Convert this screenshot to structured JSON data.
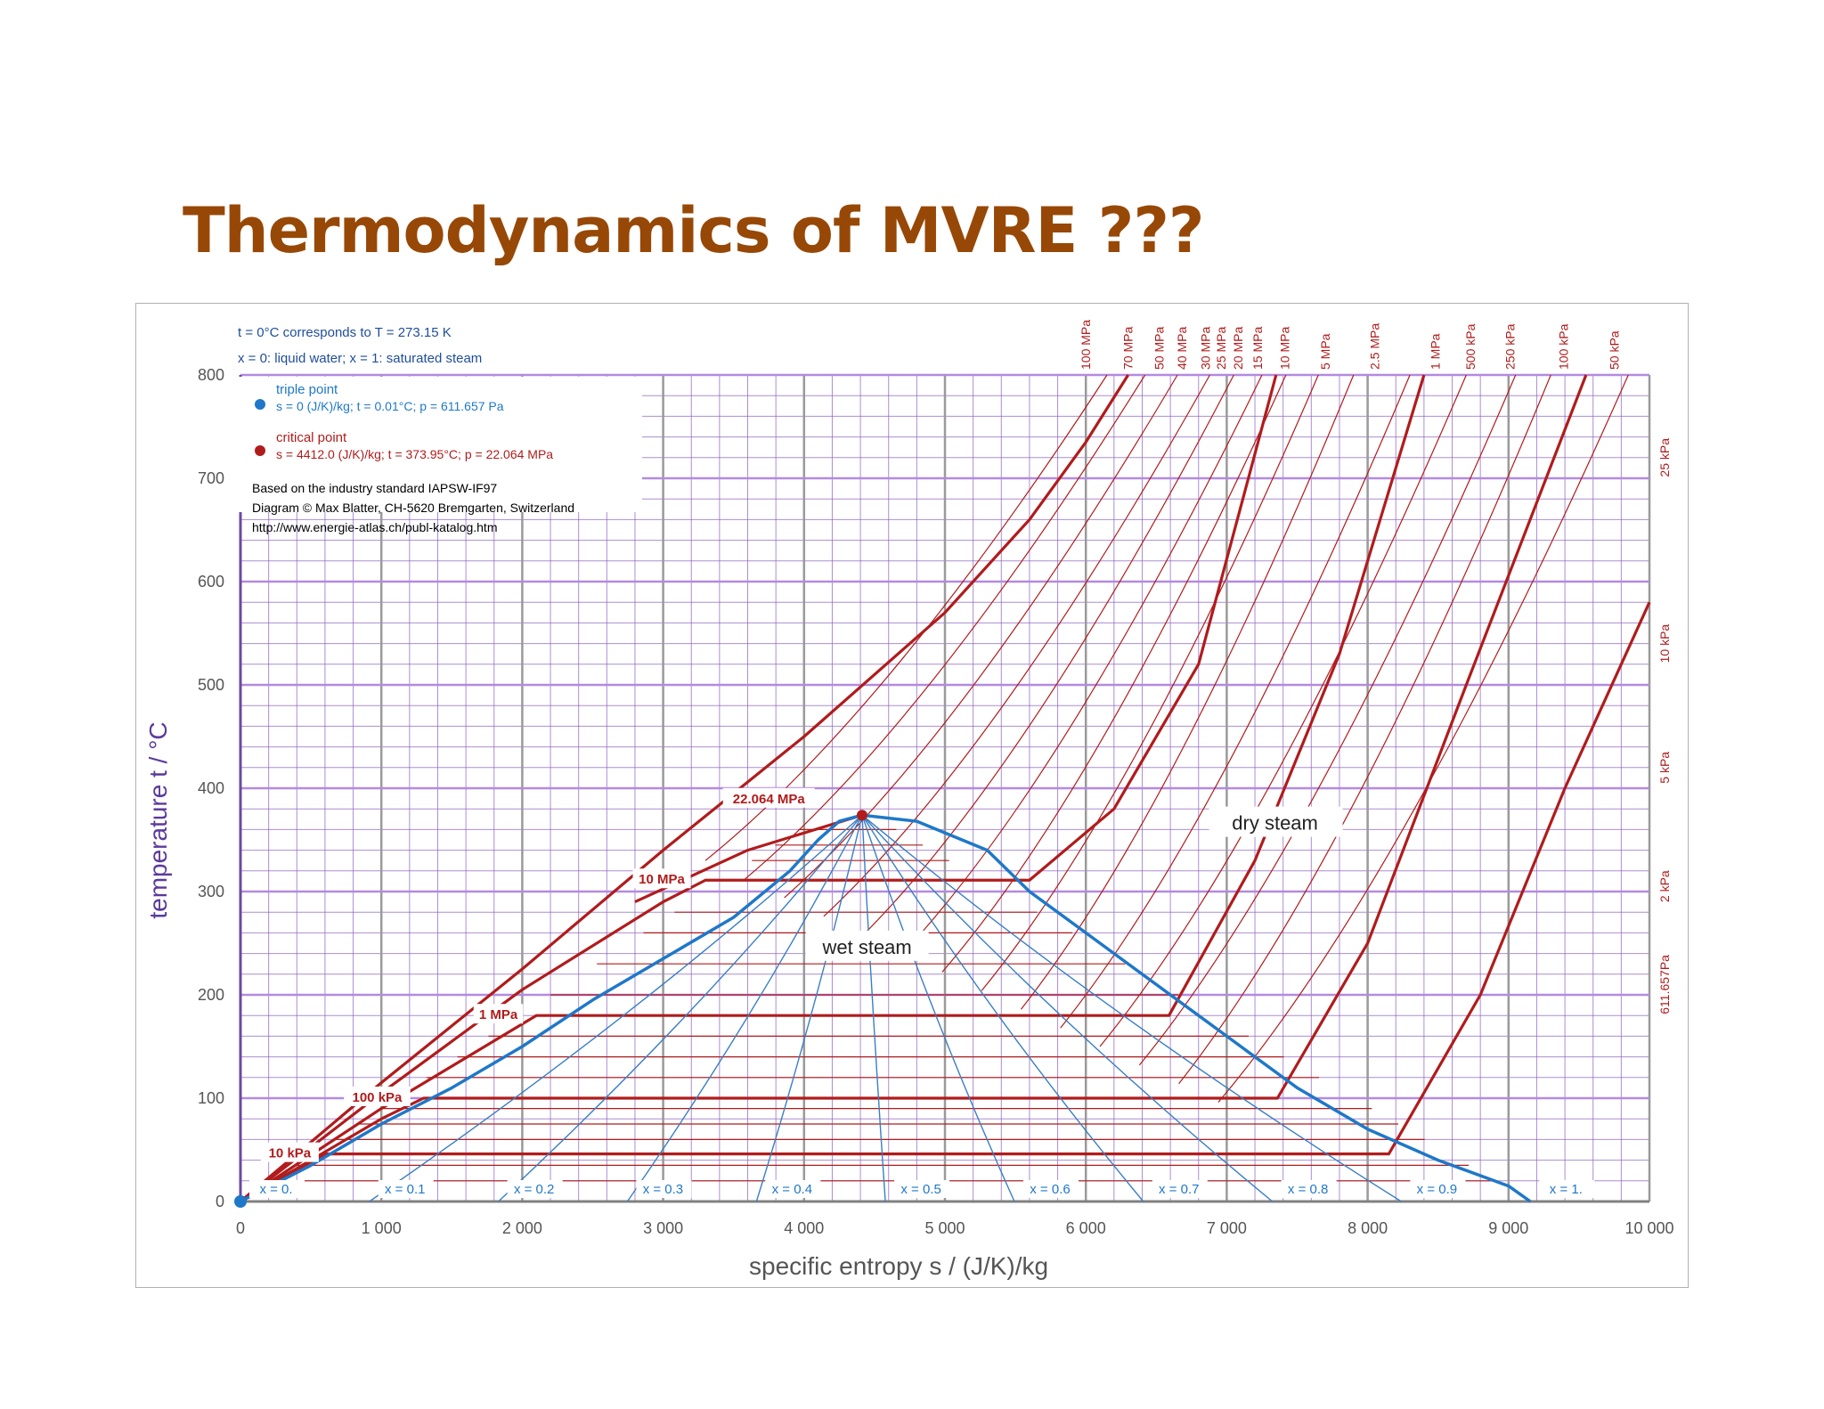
{
  "page": {
    "title": "Thermodynamics of MVRE ???"
  },
  "chart_data": {
    "type": "line",
    "xlabel": "specific entropy  s / (J/K)/kg",
    "ylabel": "temperature  t / °C",
    "xlim": [
      0,
      10000
    ],
    "ylim": [
      0,
      800
    ],
    "x_ticks": [
      0,
      1000,
      2000,
      3000,
      4000,
      5000,
      6000,
      7000,
      8000,
      9000,
      10000
    ],
    "x_tick_labels": [
      "0",
      "1 000",
      "2 000",
      "3 000",
      "4 000",
      "5 000",
      "6 000",
      "7 000",
      "8 000",
      "9 000",
      "10 000"
    ],
    "y_ticks": [
      0,
      100,
      200,
      300,
      400,
      500,
      600,
      700,
      800
    ],
    "y_tick_labels": [
      "0",
      "100",
      "200",
      "300",
      "400",
      "500",
      "600",
      "700",
      "800"
    ],
    "grid": true,
    "notes": {
      "line1": "t = 0°C corresponds to  T = 273.15 K",
      "line2": "x = 0: liquid water;  x = 1: saturated steam"
    },
    "legend": {
      "triple_label": "triple point",
      "triple_values": "s = 0 (J/K)/kg;  t = 0.01°C;  p = 611.657 Pa",
      "critical_label": "critical point",
      "critical_values": "s = 4412.0 (J/K)/kg;  t = 373.95°C;  p = 22.064 MPa",
      "source1": "Based on the industry standard IAPSW-IF97",
      "source2": "Diagram © Max Blatter, CH-5620 Bremgarten, Switzerland",
      "source3": "http://www.energie-atlas.ch/publ-katalog.htm"
    },
    "region_labels": {
      "wet": "wet steam",
      "dry": "dry steam"
    },
    "triple_point": {
      "s": 0,
      "t": 0.01
    },
    "critical_point": {
      "s": 4412,
      "t": 373.95
    },
    "saturation_dome": {
      "liquid": [
        [
          0,
          0
        ],
        [
          500,
          35
        ],
        [
          1000,
          75
        ],
        [
          1500,
          110
        ],
        [
          2000,
          150
        ],
        [
          2500,
          195
        ],
        [
          3000,
          235
        ],
        [
          3500,
          275
        ],
        [
          3900,
          320
        ],
        [
          4100,
          350
        ],
        [
          4250,
          368
        ],
        [
          4412,
          373.95
        ]
      ],
      "vapor": [
        [
          4412,
          373.95
        ],
        [
          4800,
          368
        ],
        [
          5300,
          340
        ],
        [
          5600,
          300
        ],
        [
          6000,
          260
        ],
        [
          6500,
          210
        ],
        [
          7000,
          160
        ],
        [
          7500,
          110
        ],
        [
          8000,
          70
        ],
        [
          8500,
          40
        ],
        [
          9000,
          15
        ],
        [
          9155,
          0
        ]
      ]
    },
    "quality_lines": [
      {
        "label": "x = 0.",
        "s_bottom": 0
      },
      {
        "label": "x = 0.1",
        "s_bottom": 915
      },
      {
        "label": "x = 0.2",
        "s_bottom": 1831
      },
      {
        "label": "x = 0.3",
        "s_bottom": 2746
      },
      {
        "label": "x = 0.4",
        "s_bottom": 3662
      },
      {
        "label": "x = 0.5",
        "s_bottom": 4577
      },
      {
        "label": "x = 0.6",
        "s_bottom": 5493
      },
      {
        "label": "x = 0.7",
        "s_bottom": 6408
      },
      {
        "label": "x = 0.8",
        "s_bottom": 7324
      },
      {
        "label": "x = 0.9",
        "s_bottom": 8239
      },
      {
        "label": "x = 1.",
        "s_bottom": 9155
      }
    ],
    "isobars_major": [
      {
        "label": "100 MPa",
        "points": [
          [
            0,
            0
          ],
          [
            1000,
            115
          ],
          [
            2000,
            225
          ],
          [
            3000,
            340
          ],
          [
            4000,
            450
          ],
          [
            5000,
            570
          ],
          [
            5600,
            660
          ],
          [
            6000,
            735
          ],
          [
            6300,
            800
          ]
        ],
        "dome_label": ""
      },
      {
        "label": "22.064 MPa",
        "points": [
          [
            2800,
            290
          ],
          [
            3600,
            340
          ],
          [
            4412,
            373.95
          ]
        ],
        "dome_label": "22.064 MPa"
      },
      {
        "label": "10 MPa",
        "points": [
          [
            0,
            0
          ],
          [
            1000,
            105
          ],
          [
            2000,
            205
          ],
          [
            3000,
            290
          ],
          [
            3300,
            311
          ],
          [
            5600,
            311
          ],
          [
            6200,
            380
          ],
          [
            6800,
            520
          ],
          [
            7350,
            800
          ]
        ],
        "dome_label": "10 MPa"
      },
      {
        "label": "1 MPa",
        "points": [
          [
            0,
            0
          ],
          [
            1000,
            90
          ],
          [
            2100,
            180
          ],
          [
            6590,
            180
          ],
          [
            7200,
            330
          ],
          [
            7800,
            530
          ],
          [
            8400,
            800
          ]
        ],
        "dome_label": "1 MPa"
      },
      {
        "label": "100 kPa",
        "points": [
          [
            0,
            0
          ],
          [
            1000,
            80
          ],
          [
            1300,
            100
          ],
          [
            7360,
            100
          ],
          [
            8000,
            250
          ],
          [
            8700,
            500
          ],
          [
            9550,
            800
          ]
        ],
        "dome_label": "100 kPa"
      },
      {
        "label": "10 kPa",
        "points": [
          [
            0,
            0
          ],
          [
            600,
            46
          ],
          [
            8150,
            46
          ],
          [
            8800,
            200
          ],
          [
            9400,
            400
          ],
          [
            10000,
            580
          ]
        ],
        "dome_label": "10 kPa"
      }
    ],
    "isobar_labels_top": [
      "100 MPa",
      "70 MPa",
      "50 MPa",
      "40 MPa",
      "30 MPa",
      "25 MPa",
      "20 MPa",
      "15 MPa",
      "10 MPa",
      "5 MPa",
      "2.5 MPa",
      "1 MPa",
      "500 kPa",
      "250 kPa",
      "100 kPa",
      "50 kPa"
    ],
    "isobar_labels_right": [
      "25 kPa",
      "10 kPa",
      "5 kPa",
      "2 kPa",
      "611.657Pa"
    ]
  }
}
